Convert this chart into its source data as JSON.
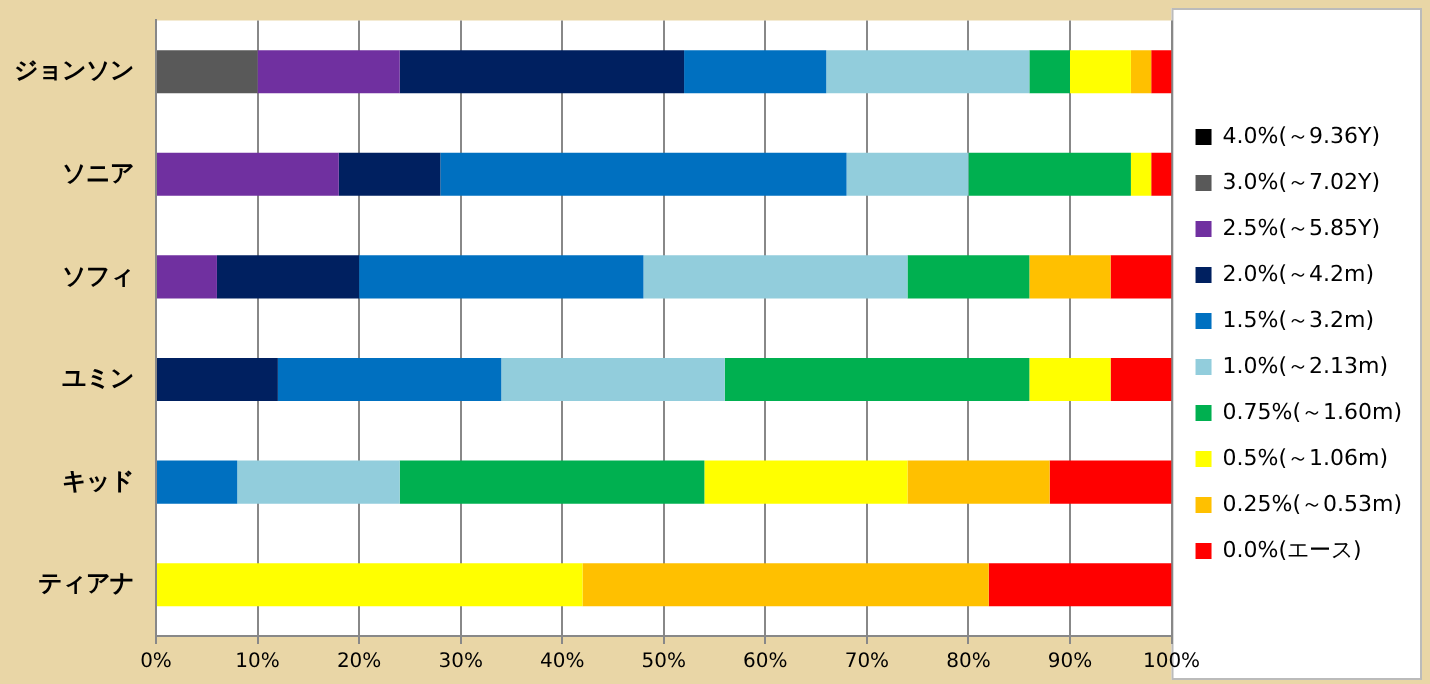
{
  "chart_data": {
    "type": "bar",
    "orientation": "horizontal",
    "stacked": true,
    "categories": [
      "ジョンソン",
      "ソニア",
      "ソフィ",
      "ユミン",
      "キッド",
      "ティアナ"
    ],
    "series": [
      {
        "name": "4.0%(～9.36Y)",
        "color": "#000000",
        "values": [
          0,
          0,
          0,
          0,
          0,
          0
        ]
      },
      {
        "name": "3.0%(～7.02Y)",
        "color": "#595959",
        "values": [
          10,
          0,
          0,
          0,
          0,
          0
        ]
      },
      {
        "name": "2.5%(～5.85Y)",
        "color": "#7030a0",
        "values": [
          14,
          18,
          6,
          0,
          0,
          0
        ]
      },
      {
        "name": "2.0%(～4.2m)",
        "color": "#002060",
        "values": [
          28,
          10,
          14,
          12,
          0,
          0
        ]
      },
      {
        "name": "1.5%(～3.2m)",
        "color": "#0070c0",
        "values": [
          14,
          40,
          28,
          22,
          8,
          0
        ]
      },
      {
        "name": "1.0%(～2.13m)",
        "color": "#92cddc",
        "values": [
          20,
          12,
          26,
          22,
          16,
          0
        ]
      },
      {
        "name": "0.75%(～1.60m)",
        "color": "#00b050",
        "values": [
          4,
          16,
          12,
          30,
          30,
          0
        ]
      },
      {
        "name": "0.5%(～1.06m)",
        "color": "#ffff00",
        "values": [
          6,
          2,
          0,
          8,
          20,
          42
        ]
      },
      {
        "name": "0.25%(～0.53m)",
        "color": "#ffc000",
        "values": [
          2,
          0,
          8,
          0,
          14,
          40
        ]
      },
      {
        "name": "0.0%(エース)",
        "color": "#ff0000",
        "values": [
          2,
          2,
          6,
          6,
          12,
          18
        ]
      }
    ],
    "xlim": [
      0,
      100
    ],
    "xticks": [
      {
        "value": 0,
        "label": "0%"
      },
      {
        "value": 10,
        "label": "10%"
      },
      {
        "value": 20,
        "label": "20%"
      },
      {
        "value": 30,
        "label": "30%"
      },
      {
        "value": 40,
        "label": "40%"
      },
      {
        "value": 50,
        "label": "50%"
      },
      {
        "value": 60,
        "label": "60%"
      },
      {
        "value": 70,
        "label": "70%"
      },
      {
        "value": 80,
        "label": "80%"
      },
      {
        "value": 90,
        "label": "90%"
      },
      {
        "value": 100,
        "label": "100%"
      }
    ],
    "grid": "x",
    "legend": "right"
  }
}
